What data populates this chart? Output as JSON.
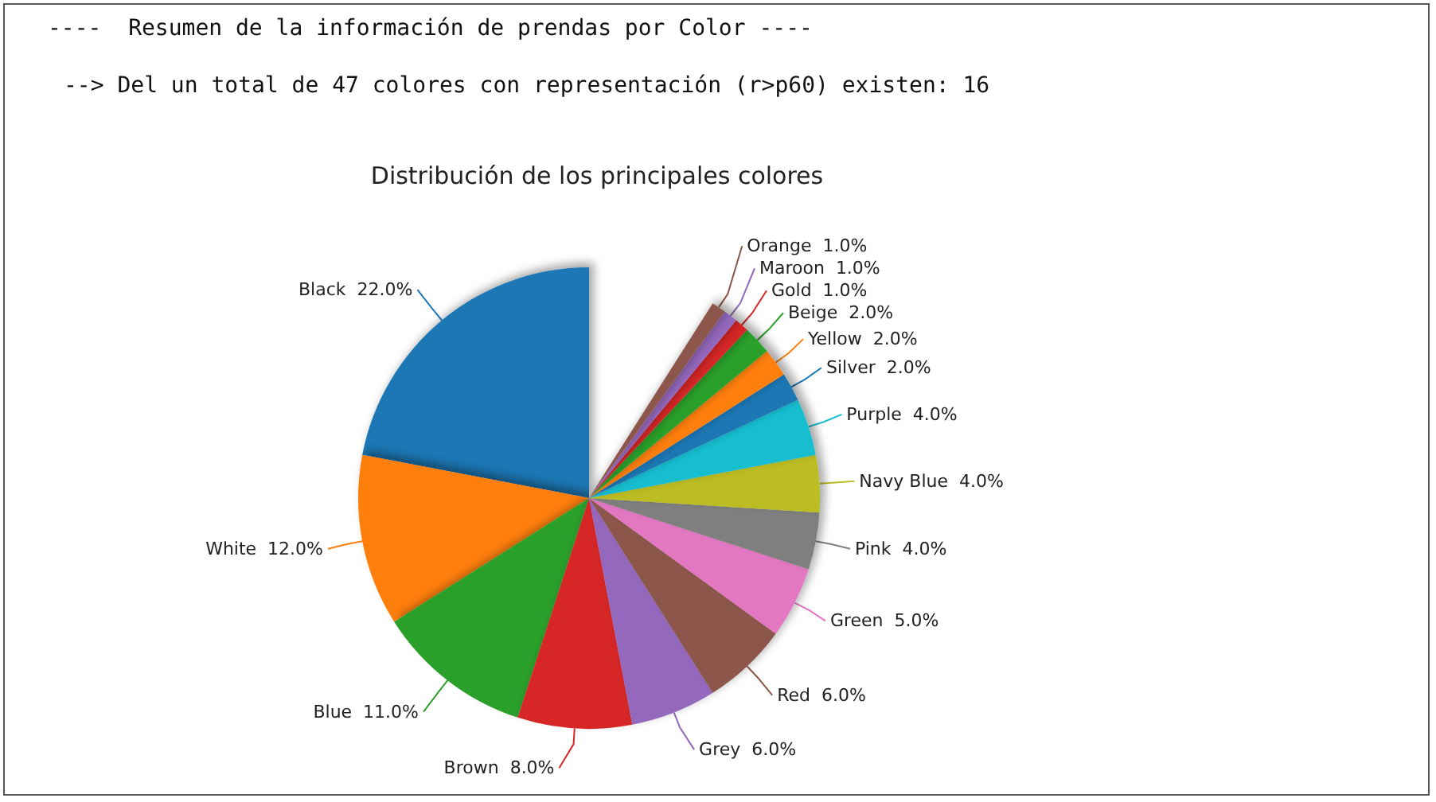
{
  "chart_data": {
    "type": "pie",
    "title": "Distribución de los principales colores",
    "annotations": [
      "----  Resumen de la información de prendas por Color ----",
      "--> Del un total de 47 colores con representación (r>p60) existen: 16"
    ],
    "categories": [
      "Black",
      "White",
      "Blue",
      "Brown",
      "Grey",
      "Red",
      "Green",
      "Pink",
      "Navy Blue",
      "Purple",
      "Silver",
      "Yellow",
      "Beige",
      "Gold",
      "Maroon",
      "Orange"
    ],
    "values": [
      22,
      12,
      11,
      8,
      6,
      6,
      5,
      4,
      4,
      4,
      2,
      2,
      2,
      1,
      1,
      1
    ],
    "value_labels": [
      "22.0%",
      "12.0%",
      "11.0%",
      "8.0%",
      "6.0%",
      "6.0%",
      "5.0%",
      "4.0%",
      "4.0%",
      "4.0%",
      "2.0%",
      "2.0%",
      "2.0%",
      "1.0%",
      "1.0%",
      "1.0%"
    ],
    "colors": [
      "#1f77b4",
      "#ff7f0e",
      "#2ca02c",
      "#d62728",
      "#9467bd",
      "#8c564b",
      "#e377c2",
      "#7f7f7f",
      "#bcbd22",
      "#17becf",
      "#1f77b4",
      "#ff7f0e",
      "#2ca02c",
      "#d62728",
      "#9467bd",
      "#8c564b"
    ],
    "legend": false
  }
}
